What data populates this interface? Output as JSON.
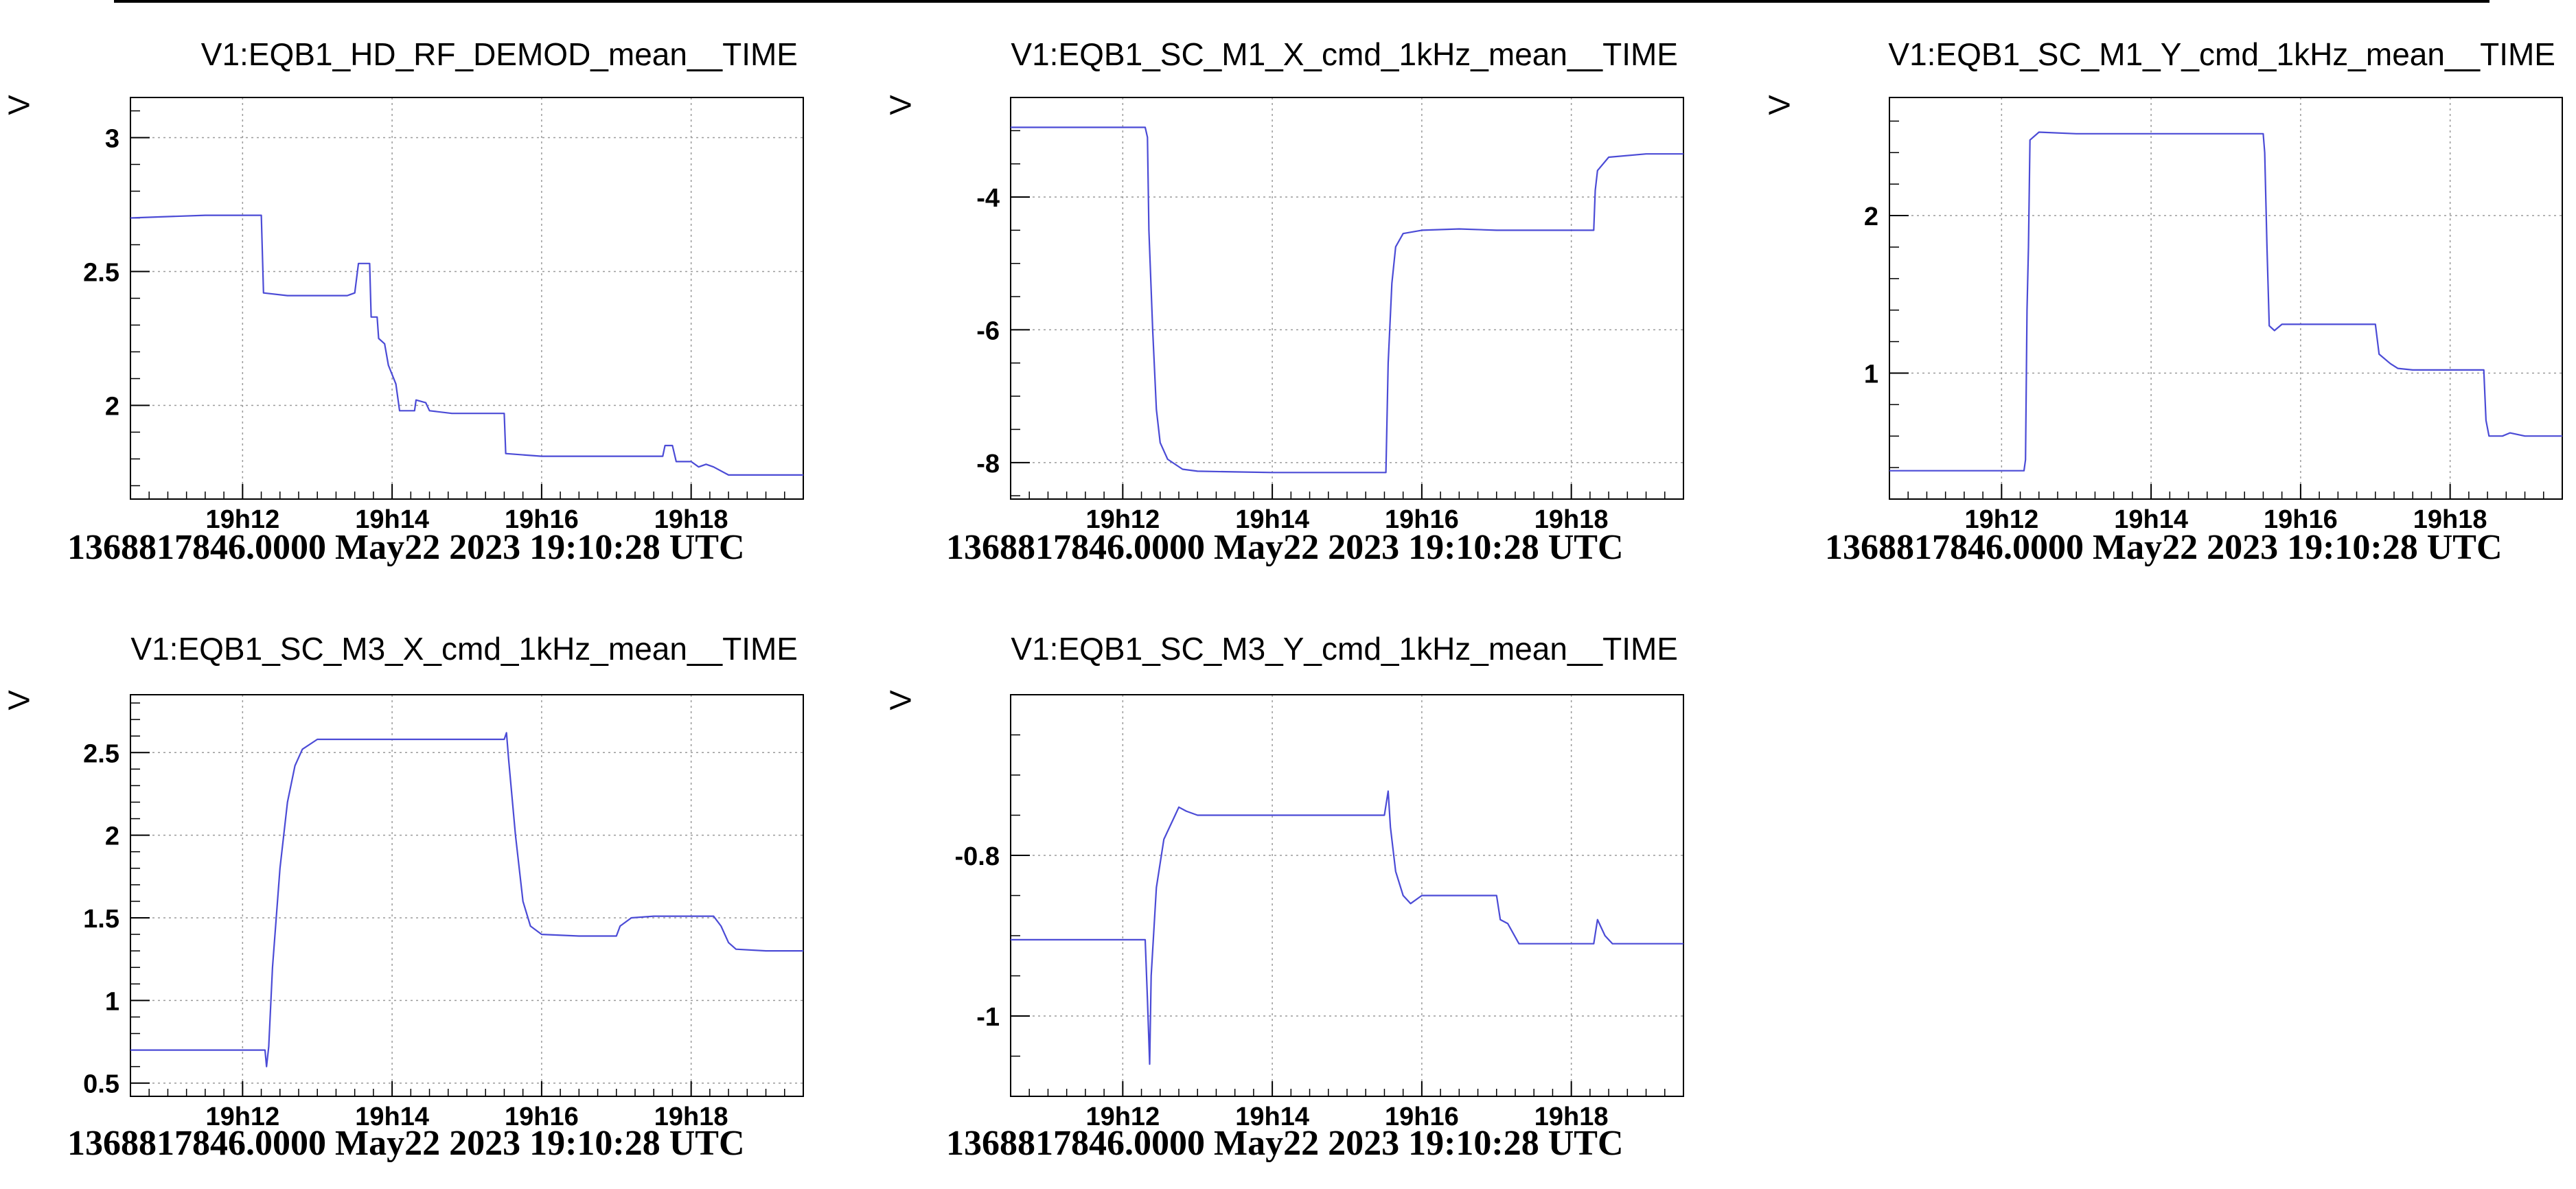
{
  "chart_data": [
    {
      "type": "line",
      "title": "V1:EQB1_HD_RF_DEMOD_mean__TIME",
      "ylabel": "V",
      "footer": "1368817846.0000 May22 2023 19:10:28 UTC",
      "xlim": [
        10.5,
        19.5
      ],
      "ylim": [
        1.65,
        3.15
      ],
      "x_ticks": [
        {
          "v": 12,
          "label": "19h12"
        },
        {
          "v": 14,
          "label": "19h14"
        },
        {
          "v": 16,
          "label": "19h16"
        },
        {
          "v": 18,
          "label": "19h18"
        }
      ],
      "y_ticks": [
        {
          "v": 2,
          "label": "2"
        },
        {
          "v": 2.5,
          "label": "2.5"
        },
        {
          "v": 3,
          "label": "3"
        }
      ],
      "y_minor_step": 0.1,
      "grid": true,
      "series": [
        {
          "color": "#4b4bd6",
          "points": [
            [
              10.5,
              2.7
            ],
            [
              11.0,
              2.705
            ],
            [
              11.5,
              2.71
            ],
            [
              12.0,
              2.71
            ],
            [
              12.25,
              2.71
            ],
            [
              12.28,
              2.42
            ],
            [
              12.6,
              2.41
            ],
            [
              13.0,
              2.41
            ],
            [
              13.4,
              2.41
            ],
            [
              13.5,
              2.42
            ],
            [
              13.55,
              2.53
            ],
            [
              13.7,
              2.53
            ],
            [
              13.72,
              2.33
            ],
            [
              13.8,
              2.33
            ],
            [
              13.82,
              2.25
            ],
            [
              13.9,
              2.23
            ],
            [
              13.95,
              2.15
            ],
            [
              14.05,
              2.08
            ],
            [
              14.1,
              1.98
            ],
            [
              14.3,
              1.98
            ],
            [
              14.32,
              2.02
            ],
            [
              14.45,
              2.01
            ],
            [
              14.5,
              1.98
            ],
            [
              14.8,
              1.97
            ],
            [
              15.0,
              1.97
            ],
            [
              15.2,
              1.97
            ],
            [
              15.5,
              1.97
            ],
            [
              15.52,
              1.82
            ],
            [
              16.0,
              1.81
            ],
            [
              16.5,
              1.81
            ],
            [
              17.0,
              1.81
            ],
            [
              17.5,
              1.81
            ],
            [
              17.62,
              1.81
            ],
            [
              17.65,
              1.85
            ],
            [
              17.75,
              1.85
            ],
            [
              17.8,
              1.79
            ],
            [
              18.0,
              1.79
            ],
            [
              18.1,
              1.77
            ],
            [
              18.2,
              1.78
            ],
            [
              18.3,
              1.77
            ],
            [
              18.5,
              1.74
            ],
            [
              19.0,
              1.74
            ],
            [
              19.5,
              1.74
            ]
          ]
        }
      ]
    },
    {
      "type": "line",
      "title": "V1:EQB1_SC_M1_X_cmd_1kHz_mean__TIME",
      "ylabel": "V",
      "footer": "1368817846.0000 May22 2023 19:10:28 UTC",
      "xlim": [
        10.5,
        19.5
      ],
      "ylim": [
        -8.55,
        -2.5
      ],
      "x_ticks": [
        {
          "v": 12,
          "label": "19h12"
        },
        {
          "v": 14,
          "label": "19h14"
        },
        {
          "v": 16,
          "label": "19h16"
        },
        {
          "v": 18,
          "label": "19h18"
        }
      ],
      "y_ticks": [
        {
          "v": -8,
          "label": "-8"
        },
        {
          "v": -6,
          "label": "-6"
        },
        {
          "v": -4,
          "label": "-4"
        }
      ],
      "y_minor_step": 0.5,
      "grid": true,
      "series": [
        {
          "color": "#4b4bd6",
          "points": [
            [
              10.5,
              -2.95
            ],
            [
              11.5,
              -2.95
            ],
            [
              12.3,
              -2.95
            ],
            [
              12.33,
              -3.1
            ],
            [
              12.35,
              -4.5
            ],
            [
              12.4,
              -6.0
            ],
            [
              12.45,
              -7.2
            ],
            [
              12.5,
              -7.7
            ],
            [
              12.6,
              -7.95
            ],
            [
              12.8,
              -8.1
            ],
            [
              13.0,
              -8.13
            ],
            [
              13.5,
              -8.14
            ],
            [
              14.0,
              -8.15
            ],
            [
              15.0,
              -8.15
            ],
            [
              15.52,
              -8.15
            ],
            [
              15.55,
              -6.5
            ],
            [
              15.6,
              -5.3
            ],
            [
              15.65,
              -4.75
            ],
            [
              15.75,
              -4.55
            ],
            [
              16.0,
              -4.5
            ],
            [
              16.5,
              -4.48
            ],
            [
              17.0,
              -4.5
            ],
            [
              17.5,
              -4.5
            ],
            [
              18.3,
              -4.5
            ],
            [
              18.32,
              -3.9
            ],
            [
              18.35,
              -3.6
            ],
            [
              18.5,
              -3.4
            ],
            [
              19.0,
              -3.35
            ],
            [
              19.5,
              -3.35
            ]
          ]
        }
      ]
    },
    {
      "type": "line",
      "title": "V1:EQB1_SC_M1_Y_cmd_1kHz_mean__TIME",
      "ylabel": "V",
      "footer": "1368817846.0000 May22 2023 19:10:28 UTC",
      "xlim": [
        10.5,
        19.5
      ],
      "ylim": [
        0.2,
        2.75
      ],
      "x_ticks": [
        {
          "v": 12,
          "label": "19h12"
        },
        {
          "v": 14,
          "label": "19h14"
        },
        {
          "v": 16,
          "label": "19h16"
        },
        {
          "v": 18,
          "label": "19h18"
        }
      ],
      "y_ticks": [
        {
          "v": 1,
          "label": "1"
        },
        {
          "v": 2,
          "label": "2"
        }
      ],
      "y_minor_step": 0.2,
      "grid": true,
      "series": [
        {
          "color": "#4b4bd6",
          "points": [
            [
              10.5,
              0.38
            ],
            [
              11.5,
              0.38
            ],
            [
              12.3,
              0.38
            ],
            [
              12.32,
              0.45
            ],
            [
              12.34,
              1.4
            ],
            [
              12.36,
              1.8
            ],
            [
              12.38,
              2.48
            ],
            [
              12.5,
              2.53
            ],
            [
              13.0,
              2.52
            ],
            [
              14.0,
              2.52
            ],
            [
              15.0,
              2.52
            ],
            [
              15.5,
              2.52
            ],
            [
              15.52,
              2.4
            ],
            [
              15.55,
              1.8
            ],
            [
              15.58,
              1.3
            ],
            [
              15.65,
              1.27
            ],
            [
              15.75,
              1.31
            ],
            [
              16.0,
              1.31
            ],
            [
              16.5,
              1.31
            ],
            [
              17.0,
              1.31
            ],
            [
              17.05,
              1.12
            ],
            [
              17.2,
              1.06
            ],
            [
              17.3,
              1.03
            ],
            [
              17.5,
              1.02
            ],
            [
              18.0,
              1.02
            ],
            [
              18.45,
              1.02
            ],
            [
              18.48,
              0.7
            ],
            [
              18.52,
              0.6
            ],
            [
              18.7,
              0.6
            ],
            [
              18.8,
              0.62
            ],
            [
              19.0,
              0.6
            ],
            [
              19.5,
              0.6
            ]
          ]
        }
      ]
    },
    {
      "type": "line",
      "title": "V1:EQB1_SC_M3_X_cmd_1kHz_mean__TIME",
      "ylabel": "V",
      "footer": "1368817846.0000 May22 2023 19:10:28 UTC",
      "xlim": [
        10.5,
        19.5
      ],
      "ylim": [
        0.42,
        2.85
      ],
      "x_ticks": [
        {
          "v": 12,
          "label": "19h12"
        },
        {
          "v": 14,
          "label": "19h14"
        },
        {
          "v": 16,
          "label": "19h16"
        },
        {
          "v": 18,
          "label": "19h18"
        }
      ],
      "y_ticks": [
        {
          "v": 0.5,
          "label": "0.5"
        },
        {
          "v": 1,
          "label": "1"
        },
        {
          "v": 1.5,
          "label": "1.5"
        },
        {
          "v": 2,
          "label": "2"
        },
        {
          "v": 2.5,
          "label": "2.5"
        }
      ],
      "y_minor_step": 0.1,
      "grid": true,
      "series": [
        {
          "color": "#4b4bd6",
          "points": [
            [
              10.5,
              0.7
            ],
            [
              11.5,
              0.7
            ],
            [
              12.3,
              0.7
            ],
            [
              12.32,
              0.6
            ],
            [
              12.35,
              0.72
            ],
            [
              12.4,
              1.2
            ],
            [
              12.5,
              1.8
            ],
            [
              12.6,
              2.2
            ],
            [
              12.7,
              2.42
            ],
            [
              12.8,
              2.52
            ],
            [
              13.0,
              2.58
            ],
            [
              13.5,
              2.58
            ],
            [
              14.0,
              2.58
            ],
            [
              15.0,
              2.58
            ],
            [
              15.5,
              2.58
            ],
            [
              15.53,
              2.62
            ],
            [
              15.56,
              2.45
            ],
            [
              15.65,
              2.0
            ],
            [
              15.75,
              1.6
            ],
            [
              15.85,
              1.45
            ],
            [
              16.0,
              1.4
            ],
            [
              16.5,
              1.39
            ],
            [
              17.0,
              1.39
            ],
            [
              17.05,
              1.45
            ],
            [
              17.2,
              1.5
            ],
            [
              17.5,
              1.51
            ],
            [
              18.0,
              1.51
            ],
            [
              18.3,
              1.51
            ],
            [
              18.4,
              1.45
            ],
            [
              18.5,
              1.35
            ],
            [
              18.6,
              1.31
            ],
            [
              19.0,
              1.3
            ],
            [
              19.5,
              1.3
            ]
          ]
        }
      ]
    },
    {
      "type": "line",
      "title": "V1:EQB1_SC_M3_Y_cmd_1kHz_mean__TIME",
      "ylabel": "V",
      "footer": "1368817846.0000 May22 2023 19:10:28 UTC",
      "xlim": [
        10.5,
        19.5
      ],
      "ylim": [
        -1.1,
        -0.6
      ],
      "x_ticks": [
        {
          "v": 12,
          "label": "19h12"
        },
        {
          "v": 14,
          "label": "19h14"
        },
        {
          "v": 16,
          "label": "19h16"
        },
        {
          "v": 18,
          "label": "19h18"
        }
      ],
      "y_ticks": [
        {
          "v": -1,
          "label": "-1"
        },
        {
          "v": -0.8,
          "label": "-0.8"
        }
      ],
      "y_minor_step": 0.05,
      "grid": true,
      "series": [
        {
          "color": "#4b4bd6",
          "points": [
            [
              10.5,
              -0.905
            ],
            [
              11.5,
              -0.905
            ],
            [
              12.3,
              -0.905
            ],
            [
              12.33,
              -0.98
            ],
            [
              12.36,
              -1.06
            ],
            [
              12.38,
              -0.95
            ],
            [
              12.45,
              -0.84
            ],
            [
              12.55,
              -0.78
            ],
            [
              12.7,
              -0.75
            ],
            [
              12.75,
              -0.74
            ],
            [
              12.85,
              -0.745
            ],
            [
              13.0,
              -0.75
            ],
            [
              13.5,
              -0.75
            ],
            [
              14.0,
              -0.75
            ],
            [
              15.0,
              -0.75
            ],
            [
              15.5,
              -0.75
            ],
            [
              15.55,
              -0.72
            ],
            [
              15.58,
              -0.765
            ],
            [
              15.65,
              -0.82
            ],
            [
              15.75,
              -0.85
            ],
            [
              15.85,
              -0.86
            ],
            [
              16.0,
              -0.85
            ],
            [
              16.5,
              -0.85
            ],
            [
              17.0,
              -0.85
            ],
            [
              17.05,
              -0.88
            ],
            [
              17.15,
              -0.885
            ],
            [
              17.3,
              -0.91
            ],
            [
              18.0,
              -0.91
            ],
            [
              18.3,
              -0.91
            ],
            [
              18.35,
              -0.88
            ],
            [
              18.45,
              -0.9
            ],
            [
              18.55,
              -0.91
            ],
            [
              19.0,
              -0.91
            ],
            [
              19.5,
              -0.91
            ]
          ]
        }
      ]
    }
  ]
}
